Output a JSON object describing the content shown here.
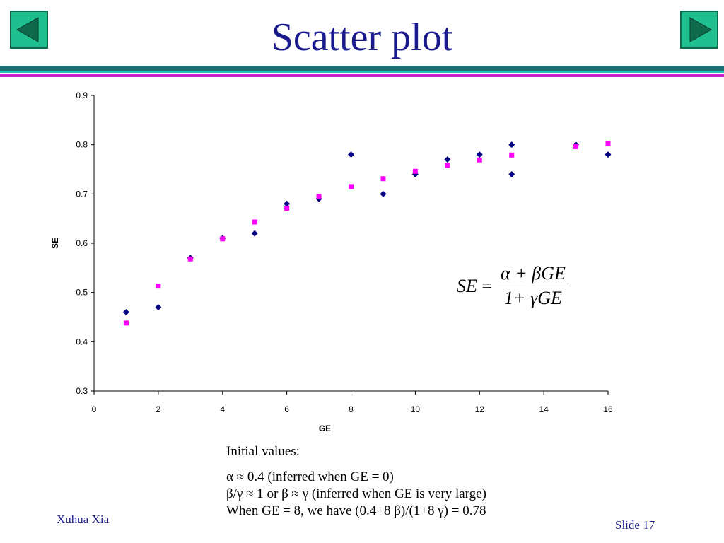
{
  "slide": {
    "title": "Scatter plot",
    "author": "Xuhua Xia",
    "slide_number": "Slide 17",
    "nav": {
      "prev_icon": "left-triangle-icon",
      "next_icon": "right-triangle-icon"
    }
  },
  "formula": {
    "lhs": "SE",
    "numerator": "α + βGE",
    "denominator": "1+ γGE"
  },
  "notes": {
    "heading": "Initial values:",
    "lines": [
      "α ≈ 0.4 (inferred when GE = 0)",
      "β/γ ≈ 1 or β ≈ γ (inferred when GE is very large)",
      "When GE = 8, we have (0.4+8 β)/(1+8 γ) = 0.78"
    ]
  },
  "chart_data": {
    "type": "scatter",
    "xlabel": "GE",
    "ylabel": "SE",
    "xlim": [
      0,
      16
    ],
    "ylim": [
      0.3,
      0.9
    ],
    "xticks": [
      0,
      2,
      4,
      6,
      8,
      10,
      12,
      14,
      16
    ],
    "yticks": [
      0.3,
      0.4,
      0.5,
      0.6,
      0.7,
      0.8,
      0.9
    ],
    "grid": false,
    "series": [
      {
        "marker": "diamond",
        "color": "#000080",
        "points": [
          [
            1,
            0.46
          ],
          [
            2,
            0.47
          ],
          [
            3,
            0.57
          ],
          [
            4,
            0.61
          ],
          [
            5,
            0.62
          ],
          [
            6,
            0.68
          ],
          [
            7,
            0.69
          ],
          [
            8,
            0.78
          ],
          [
            9,
            0.7
          ],
          [
            10,
            0.74
          ],
          [
            11,
            0.77
          ],
          [
            12,
            0.78
          ],
          [
            13,
            0.8
          ],
          [
            13,
            0.74
          ],
          [
            15,
            0.8
          ],
          [
            16,
            0.78
          ]
        ]
      },
      {
        "marker": "square",
        "color": "#ff00ff",
        "points": [
          [
            1,
            0.438
          ],
          [
            2,
            0.513
          ],
          [
            3,
            0.568
          ],
          [
            4,
            0.609
          ],
          [
            5,
            0.643
          ],
          [
            6,
            0.671
          ],
          [
            7,
            0.695
          ],
          [
            8,
            0.715
          ],
          [
            9,
            0.731
          ],
          [
            10,
            0.746
          ],
          [
            11,
            0.758
          ],
          [
            12,
            0.769
          ],
          [
            13,
            0.779
          ],
          [
            15,
            0.796
          ],
          [
            16,
            0.803
          ]
        ]
      }
    ]
  }
}
